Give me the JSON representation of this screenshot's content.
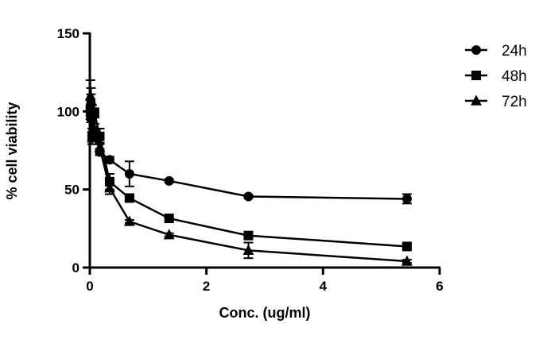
{
  "chart_data": {
    "type": "line",
    "title": "",
    "xlabel": "Conc. (ug/ml)",
    "ylabel": "% cell viability",
    "xlim": [
      0,
      6
    ],
    "ylim": [
      0,
      150
    ],
    "x_ticks": [
      0,
      2,
      4,
      6
    ],
    "y_ticks": [
      0,
      50,
      100,
      150
    ],
    "grid": false,
    "legend_position": "top-right",
    "series": [
      {
        "name": "24h",
        "marker": "circle",
        "points": [
          {
            "x": 0.01,
            "y": 100,
            "err": 3
          },
          {
            "x": 0.02,
            "y": 105,
            "err": 6
          },
          {
            "x": 0.04,
            "y": 99,
            "err": 5
          },
          {
            "x": 0.08,
            "y": 88,
            "err": 4
          },
          {
            "x": 0.17,
            "y": 74,
            "err": 2
          },
          {
            "x": 0.34,
            "y": 69,
            "err": 2
          },
          {
            "x": 0.68,
            "y": 60,
            "err": 8
          },
          {
            "x": 1.36,
            "y": 55.5,
            "err": 1
          },
          {
            "x": 2.72,
            "y": 45.5,
            "err": 1
          },
          {
            "x": 5.44,
            "y": 44,
            "err": 3
          }
        ]
      },
      {
        "name": "48h",
        "marker": "square",
        "points": [
          {
            "x": 0.01,
            "y": 101,
            "err": 6
          },
          {
            "x": 0.02,
            "y": 97,
            "err": 4
          },
          {
            "x": 0.04,
            "y": 84,
            "err": 5
          },
          {
            "x": 0.08,
            "y": 99,
            "err": 3
          },
          {
            "x": 0.17,
            "y": 84,
            "err": 5
          },
          {
            "x": 0.34,
            "y": 55,
            "err": 5
          },
          {
            "x": 0.68,
            "y": 44.5,
            "err": 1
          },
          {
            "x": 1.36,
            "y": 31.5,
            "err": 1
          },
          {
            "x": 2.72,
            "y": 20.5,
            "err": 2
          },
          {
            "x": 5.44,
            "y": 13.5,
            "err": 1
          }
        ]
      },
      {
        "name": "72h",
        "marker": "triangle",
        "points": [
          {
            "x": 0.01,
            "y": 110,
            "err": 10
          },
          {
            "x": 0.02,
            "y": 107,
            "err": 8
          },
          {
            "x": 0.04,
            "y": 83,
            "err": 4
          },
          {
            "x": 0.08,
            "y": 85,
            "err": 4
          },
          {
            "x": 0.17,
            "y": 77,
            "err": 3
          },
          {
            "x": 0.34,
            "y": 51,
            "err": 4
          },
          {
            "x": 0.68,
            "y": 29.5,
            "err": 1
          },
          {
            "x": 1.36,
            "y": 21,
            "err": 1
          },
          {
            "x": 2.72,
            "y": 11,
            "err": 5
          },
          {
            "x": 5.44,
            "y": 4,
            "err": 1
          }
        ]
      }
    ]
  }
}
